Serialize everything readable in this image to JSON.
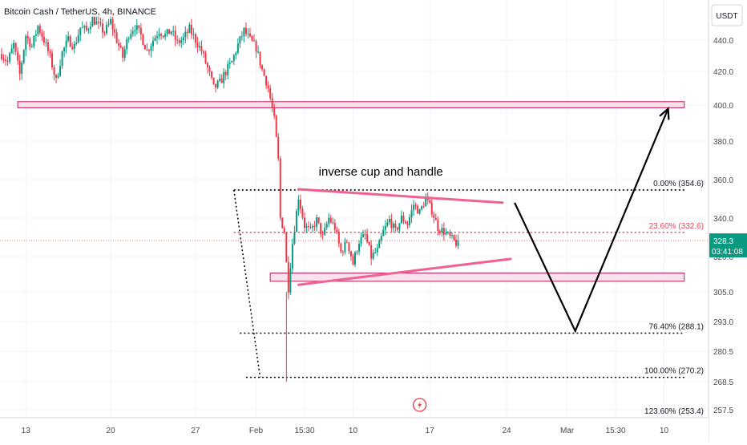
{
  "chart_data": {
    "type": "candlestick",
    "title": "Bitcoin Cash / TetherUS, 4h, BINANCE",
    "currency": "USDT",
    "x_tick_labels": [
      {
        "label": "13",
        "bar": 12
      },
      {
        "label": "20",
        "bar": 54
      },
      {
        "label": "27",
        "bar": 96
      },
      {
        "label": "Feb",
        "bar": 126
      },
      {
        "label": "15:30",
        "bar": 150
      },
      {
        "label": "10",
        "bar": 174
      },
      {
        "label": "17",
        "bar": 212
      },
      {
        "label": "24",
        "bar": 250
      },
      {
        "label": "Mar",
        "bar": 280
      },
      {
        "label": "15:30",
        "bar": 304
      },
      {
        "label": "10",
        "bar": 328
      }
    ],
    "y_tick_labels": [
      "440.0",
      "420.0",
      "400.0",
      "380.0",
      "360.0",
      "340.0",
      "320.0",
      "305.0",
      "293.0",
      "280.5",
      "268.5",
      "257.5"
    ],
    "y_ticks": [
      440,
      420,
      400,
      380,
      360,
      340,
      320,
      305,
      293,
      280.5,
      268.5,
      257.5
    ],
    "current_price": {
      "value": 328.3,
      "label": "328.3",
      "countdown": "03:41:08"
    },
    "price_path": [
      [
        0,
        431
      ],
      [
        3,
        426
      ],
      [
        6,
        437
      ],
      [
        9,
        418
      ],
      [
        12,
        443
      ],
      [
        15,
        436
      ],
      [
        18,
        449
      ],
      [
        21,
        440
      ],
      [
        24,
        429
      ],
      [
        27,
        414
      ],
      [
        30,
        432
      ],
      [
        33,
        440
      ],
      [
        36,
        436
      ],
      [
        39,
        448
      ],
      [
        42,
        446
      ],
      [
        45,
        454
      ],
      [
        48,
        449
      ],
      [
        51,
        445
      ],
      [
        54,
        452
      ],
      [
        57,
        440
      ],
      [
        60,
        429
      ],
      [
        63,
        444
      ],
      [
        66,
        449
      ],
      [
        69,
        443
      ],
      [
        72,
        433
      ],
      [
        75,
        440
      ],
      [
        78,
        446
      ],
      [
        81,
        443
      ],
      [
        84,
        446
      ],
      [
        87,
        438
      ],
      [
        90,
        441
      ],
      [
        93,
        447
      ],
      [
        96,
        440
      ],
      [
        99,
        433
      ],
      [
        102,
        422
      ],
      [
        105,
        410
      ],
      [
        108,
        413
      ],
      [
        111,
        420
      ],
      [
        114,
        426
      ],
      [
        117,
        437
      ],
      [
        120,
        446
      ],
      [
        123,
        440
      ],
      [
        126,
        435
      ],
      [
        129,
        421
      ],
      [
        132,
        410
      ],
      [
        135,
        392
      ],
      [
        137,
        370
      ],
      [
        138,
        340
      ],
      [
        140,
        333
      ],
      [
        141,
        317
      ],
      [
        142,
        307
      ],
      [
        144,
        327
      ],
      [
        147,
        351
      ],
      [
        150,
        336
      ],
      [
        153,
        333
      ],
      [
        156,
        339
      ],
      [
        159,
        330
      ],
      [
        162,
        340
      ],
      [
        165,
        335
      ],
      [
        168,
        322
      ],
      [
        171,
        328
      ],
      [
        174,
        317
      ],
      [
        177,
        328
      ],
      [
        180,
        331
      ],
      [
        183,
        320
      ],
      [
        186,
        323
      ],
      [
        189,
        333
      ],
      [
        192,
        339
      ],
      [
        195,
        333
      ],
      [
        198,
        340
      ],
      [
        201,
        337
      ],
      [
        204,
        347
      ],
      [
        207,
        343
      ],
      [
        210,
        350
      ],
      [
        213,
        344
      ],
      [
        216,
        335
      ],
      [
        219,
        333
      ],
      [
        222,
        330
      ],
      [
        225,
        327
      ],
      [
        226,
        328.3
      ]
    ],
    "zones": [
      {
        "from": 398.5,
        "to": 402,
        "x0": 8,
        "x1": 338,
        "name": "resistance-zone"
      },
      {
        "from": 309.5,
        "to": 313,
        "x0": 133,
        "x1": 338,
        "name": "support-zone"
      }
    ],
    "fibonacci": {
      "x0": 115,
      "x1": 338,
      "color": "#000000",
      "accent": "#e9455f",
      "levels": [
        {
          "ratio": "0.00%",
          "price": 354.6,
          "label": "0.00% (354.6)"
        },
        {
          "ratio": "23.60%",
          "price": 332.6,
          "label": "23.60% (332.6)"
        },
        {
          "ratio": "76.40%",
          "price": 288.1,
          "label": "76.40% (288.1)"
        },
        {
          "ratio": "100.00%",
          "price": 270.2,
          "label": "100.00% (270.2)"
        },
        {
          "ratio": "123.60%",
          "price": 253.4,
          "label": "123.60% (253.4)"
        }
      ]
    },
    "triangle": {
      "upper": [
        [
          147,
          355
        ],
        [
          248,
          348
        ]
      ],
      "lower": [
        [
          147,
          308
        ],
        [
          252,
          319
        ]
      ]
    },
    "projection": [
      [
        254,
        348
      ],
      [
        284,
        289
      ],
      [
        330,
        398
      ]
    ],
    "annotations": [
      {
        "text": "inverse cup and handle",
        "bar": 157,
        "price": 362
      }
    ],
    "colors": {
      "up": "#089981",
      "down": "#f23645",
      "zone_fill": "#fbe1ec",
      "zone_border": "#c2185b",
      "trendline": "#f06292",
      "projection": "#000000",
      "price_line": "#e57373",
      "axis_text": "#4a4a4a",
      "current_bg": "#089981"
    }
  }
}
